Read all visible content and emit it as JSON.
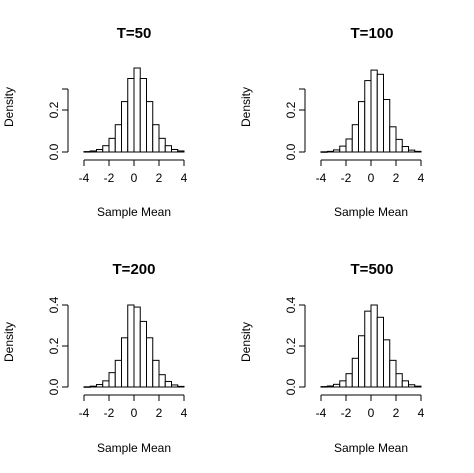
{
  "chart_data": [
    {
      "type": "bar",
      "title": "T=50",
      "xlabel": "Sample Mean",
      "ylabel": "Density",
      "xlim": [
        -4,
        4
      ],
      "ylim": [
        0,
        0.4
      ],
      "x_ticks": [
        "-4",
        "-2",
        "0",
        "2",
        "4"
      ],
      "y_ticks": [
        "0.0",
        "0.2"
      ],
      "bins": [
        -4,
        -3.5,
        -3,
        -2.5,
        -2,
        -1.5,
        -1,
        -0.5,
        0,
        0.5,
        1,
        1.5,
        2,
        2.5,
        3,
        3.5
      ],
      "values": [
        0.002,
        0.005,
        0.012,
        0.03,
        0.065,
        0.13,
        0.24,
        0.35,
        0.4,
        0.35,
        0.24,
        0.13,
        0.065,
        0.03,
        0.012,
        0.005
      ],
      "bin_width": 0.5
    },
    {
      "type": "bar",
      "title": "T=100",
      "xlabel": "Sample Mean",
      "ylabel": "Density",
      "xlim": [
        -4,
        4
      ],
      "ylim": [
        0,
        0.4
      ],
      "x_ticks": [
        "-4",
        "-2",
        "0",
        "2",
        "4"
      ],
      "y_ticks": [
        "0.0",
        "0.2"
      ],
      "bins": [
        -4,
        -3.5,
        -3,
        -2.5,
        -2,
        -1.5,
        -1,
        -0.5,
        0,
        0.5,
        1,
        1.5,
        2,
        2.5,
        3,
        3.5
      ],
      "values": [
        0.001,
        0.003,
        0.01,
        0.028,
        0.062,
        0.13,
        0.24,
        0.34,
        0.39,
        0.37,
        0.25,
        0.12,
        0.06,
        0.026,
        0.009,
        0.003
      ],
      "bin_width": 0.5
    },
    {
      "type": "bar",
      "title": "T=200",
      "xlabel": "Sample Mean",
      "ylabel": "Density",
      "xlim": [
        -4,
        4
      ],
      "ylim": [
        0,
        0.45
      ],
      "x_ticks": [
        "-4",
        "-2",
        "0",
        "2",
        "4"
      ],
      "y_ticks": [
        "0.0",
        "0.2",
        "0.4"
      ],
      "bins": [
        -4,
        -3.5,
        -3,
        -2.5,
        -2,
        -1.5,
        -1,
        -0.5,
        0,
        0.5,
        1,
        1.5,
        2,
        2.5,
        3,
        3.5
      ],
      "values": [
        0.001,
        0.004,
        0.012,
        0.03,
        0.07,
        0.13,
        0.24,
        0.4,
        0.39,
        0.32,
        0.24,
        0.13,
        0.06,
        0.027,
        0.01,
        0.003
      ],
      "bin_width": 0.5
    },
    {
      "type": "bar",
      "title": "T=500",
      "xlabel": "Sample Mean",
      "ylabel": "Density",
      "xlim": [
        -4,
        4
      ],
      "ylim": [
        0,
        0.45
      ],
      "x_ticks": [
        "-4",
        "-2",
        "0",
        "2",
        "4"
      ],
      "y_ticks": [
        "0.0",
        "0.2",
        "0.4"
      ],
      "bins": [
        -4,
        -3.5,
        -3,
        -2.5,
        -2,
        -1.5,
        -1,
        -0.5,
        0,
        0.5,
        1,
        1.5,
        2,
        2.5,
        3,
        3.5
      ],
      "values": [
        0.002,
        0.005,
        0.013,
        0.03,
        0.065,
        0.14,
        0.25,
        0.37,
        0.4,
        0.34,
        0.23,
        0.13,
        0.065,
        0.03,
        0.011,
        0.004
      ],
      "bin_width": 0.5
    }
  ]
}
